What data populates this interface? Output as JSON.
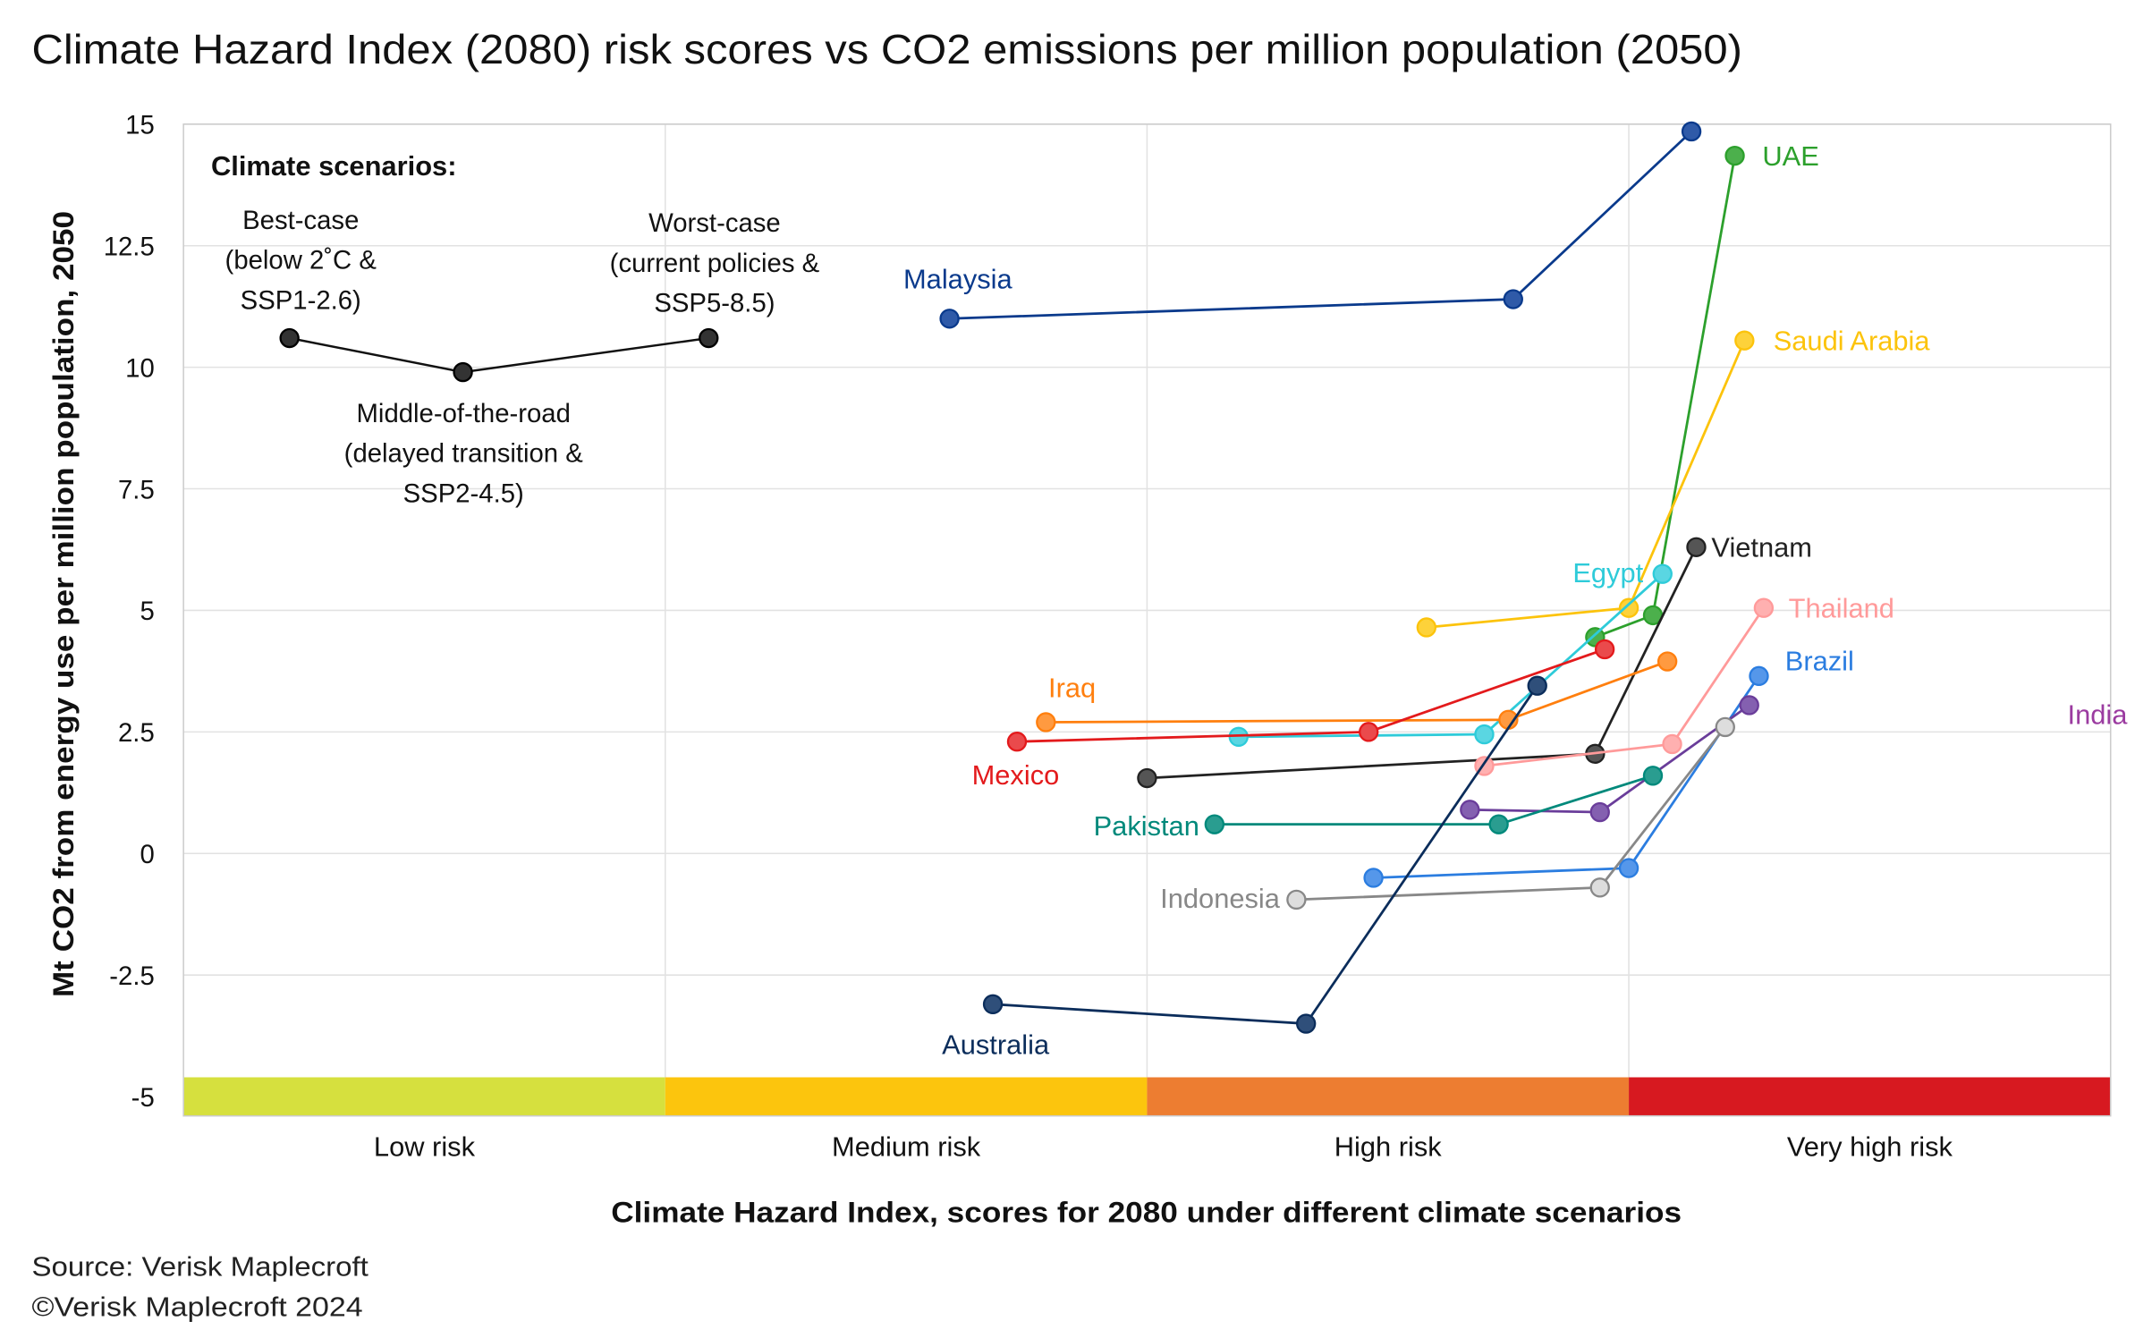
{
  "chart_data": {
    "type": "line",
    "title": "Climate Hazard Index (2080) risk scores vs CO2 emissions per million population (2050)",
    "xlabel": "Climate Hazard Index, scores for 2080 under different climate scenarios",
    "ylabel": "Mt CO2 from energy use per million population, 2050",
    "ylim": [
      -5,
      15
    ],
    "yticks": [
      "15",
      "12.5",
      "10",
      "7.5",
      "5",
      "2.5",
      "0",
      "-2.5",
      "-5"
    ],
    "ytick_values": [
      15,
      12.5,
      10,
      7.5,
      5,
      2.5,
      0,
      -2.5,
      -5
    ],
    "xlim": [
      0,
      4
    ],
    "grid": true,
    "risk_bands": [
      {
        "label": "Low risk",
        "color": "#d6e03e"
      },
      {
        "label": "Medium risk",
        "color": "#fcc50d"
      },
      {
        "label": "High risk",
        "color": "#ed7d31"
      },
      {
        "label": "Very high risk",
        "color": "#d71920"
      }
    ],
    "legend": {
      "heading": "Climate scenarios:",
      "placement": "top-left",
      "x": [
        0.22,
        0.58,
        1.09
      ],
      "y": [
        10.6,
        9.9,
        10.6
      ],
      "scenarios": [
        {
          "lines": [
            "Best-case",
            "(below 2˚C &",
            "SSP1-2.6)"
          ]
        },
        {
          "lines": [
            "Middle-of-the-road",
            "(delayed transition &",
            "SSP2-4.5)"
          ]
        },
        {
          "lines": [
            "Worst-case",
            "(current policies &",
            "SSP5-8.5)"
          ]
        }
      ]
    },
    "series": [
      {
        "name": "Malaysia",
        "color": "#0a3a8c",
        "fill": "#2f5aa8",
        "x": [
          1.59,
          2.76,
          3.13
        ],
        "y": [
          11.0,
          11.4,
          14.85
        ]
      },
      {
        "name": "UAE",
        "color": "#2ca02c",
        "fill": "#4cb04c",
        "x": [
          2.93,
          3.05,
          3.22
        ],
        "y": [
          4.45,
          4.9,
          14.35
        ]
      },
      {
        "name": "Saudi Arabia",
        "color": "#fcc30b",
        "fill": "#fdd23a",
        "x": [
          2.58,
          3.0,
          3.24
        ],
        "y": [
          4.65,
          5.05,
          10.55
        ]
      },
      {
        "name": "Egypt",
        "color": "#2ecbd9",
        "fill": "#5ad6e2",
        "x": [
          2.19,
          2.7,
          3.07
        ],
        "y": [
          2.4,
          2.45,
          5.75
        ]
      },
      {
        "name": "Vietnam",
        "color": "#222222",
        "fill": "#555555",
        "x": [
          2.0,
          2.93,
          3.14
        ],
        "y": [
          1.55,
          2.05,
          6.3
        ]
      },
      {
        "name": "Thailand",
        "color": "#ff9a9a",
        "fill": "#ffb0b0",
        "x": [
          2.7,
          3.09,
          3.28
        ],
        "y": [
          1.8,
          2.25,
          5.05
        ]
      },
      {
        "name": "Brazil",
        "color": "#2b7de0",
        "fill": "#5597ea",
        "x": [
          2.47,
          3.0,
          3.27
        ],
        "y": [
          -0.5,
          -0.3,
          3.65
        ]
      },
      {
        "name": "India",
        "color": "#6a3d9a",
        "fill": "#8460b0",
        "label_color": "#9b3ba0",
        "x": [
          2.67,
          2.94,
          3.25
        ],
        "y": [
          0.9,
          0.85,
          3.05
        ]
      },
      {
        "name": "Iraq",
        "color": "#ff7f0e",
        "fill": "#ff9a40",
        "x": [
          1.79,
          2.75,
          3.08
        ],
        "y": [
          2.7,
          2.75,
          3.95
        ]
      },
      {
        "name": "Mexico",
        "color": "#e31a1c",
        "fill": "#ea4a4c",
        "x": [
          1.73,
          2.46,
          2.95
        ],
        "y": [
          2.3,
          2.5,
          4.2
        ]
      },
      {
        "name": "Pakistan",
        "color": "#00897b",
        "fill": "#2a9d90",
        "x": [
          2.14,
          2.73,
          3.05
        ],
        "y": [
          0.6,
          0.6,
          1.6
        ]
      },
      {
        "name": "Indonesia",
        "color": "#888888",
        "fill": "#dddddd",
        "x": [
          2.31,
          2.94,
          3.2
        ],
        "y": [
          -0.95,
          -0.7,
          2.6
        ]
      },
      {
        "name": "Australia",
        "color": "#0b2d5b",
        "fill": "#2f4f7a",
        "x": [
          1.68,
          2.33,
          2.81
        ],
        "y": [
          -3.1,
          -3.5,
          3.45
        ]
      }
    ],
    "source": "Source: Verisk Maplecroft",
    "copyright": "©Verisk Maplecroft 2024"
  }
}
